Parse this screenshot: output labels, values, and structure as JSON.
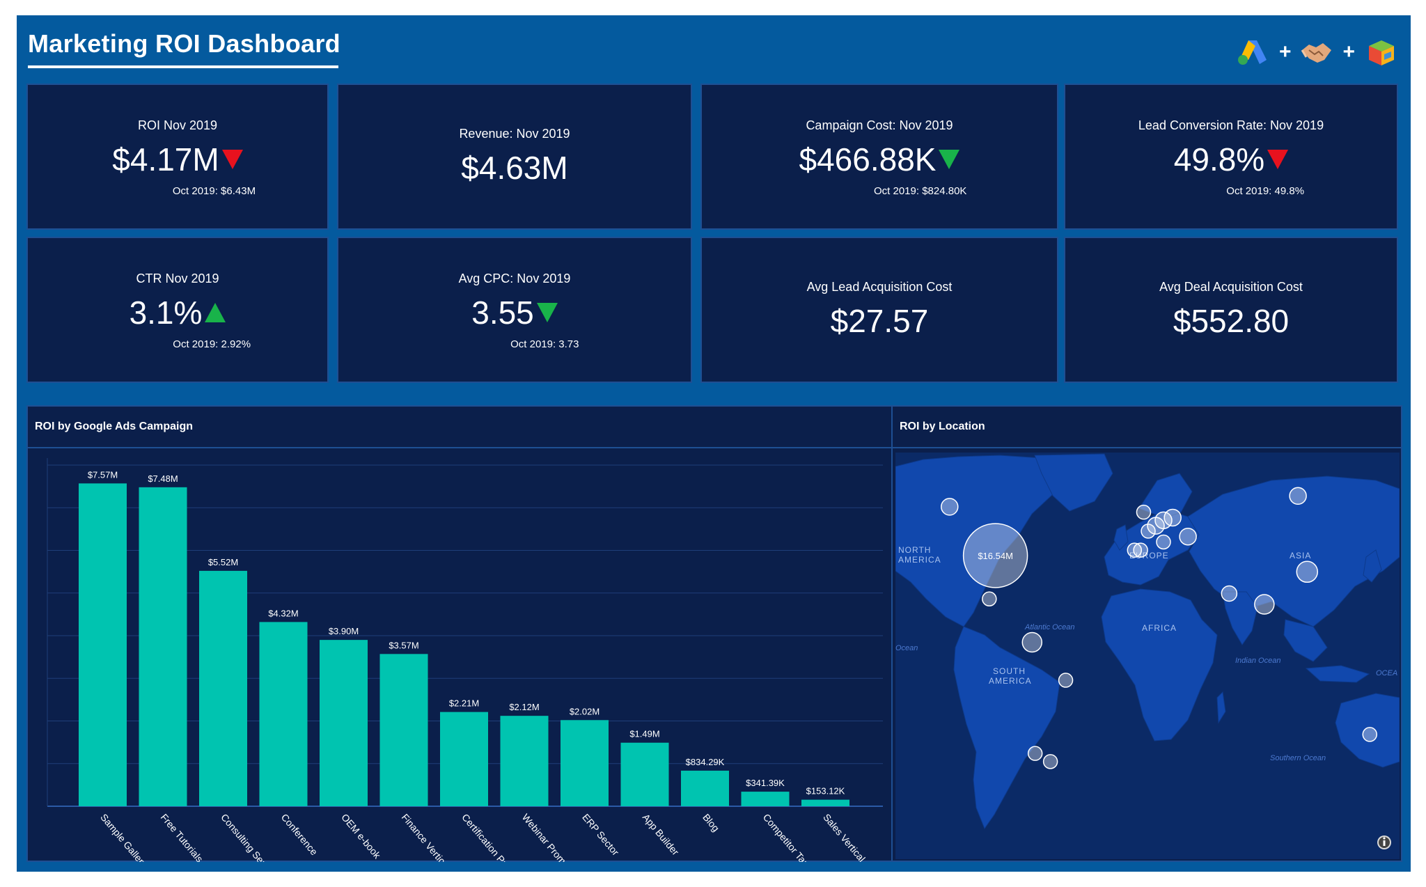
{
  "dashboard": {
    "title": "Marketing ROI Dashboard",
    "logos": [
      "google-ads-icon",
      "handshake-icon",
      "crm-cube-icon"
    ],
    "plus": "+"
  },
  "colors": {
    "frame": "#045a9e",
    "card": "#0b1f4b",
    "bar": "#00c4b0",
    "down_red": "#e8121e",
    "green": "#19b34a"
  },
  "kpis": [
    {
      "label": "ROI Nov 2019",
      "value": "$4.17M",
      "trend": "down-red",
      "sub": "Oct 2019: $6.43M"
    },
    {
      "label": "Revenue: Nov 2019",
      "value": "$4.63M",
      "trend": "none",
      "sub": ""
    },
    {
      "label": "Campaign Cost: Nov 2019",
      "value": "$466.88K",
      "trend": "down-green",
      "sub": "Oct 2019: $824.80K"
    },
    {
      "label": "Lead Conversion Rate: Nov 2019",
      "value": "49.8%",
      "trend": "down-red",
      "sub": "Oct 2019: 49.8%"
    },
    {
      "label": "CTR Nov 2019",
      "value": "3.1%",
      "trend": "up-green",
      "sub": "Oct 2019: 2.92%"
    },
    {
      "label": "Avg CPC: Nov 2019",
      "value": "3.55",
      "trend": "down-green",
      "sub": "Oct 2019: 3.73"
    },
    {
      "label": "Avg Lead Acquisition Cost",
      "value": "$27.57",
      "trend": "none",
      "sub": ""
    },
    {
      "label": "Avg Deal Acquisition Cost",
      "value": "$552.80",
      "trend": "none",
      "sub": ""
    }
  ],
  "bar_panel": {
    "title": "ROI by Google Ads Campaign"
  },
  "map_panel": {
    "title": "ROI by Location",
    "labels": {
      "north_america": [
        "NORTH",
        "AMERICA"
      ],
      "south_america": [
        "SOUTH",
        "AMERICA"
      ],
      "europe": "EUROPE",
      "asia": "ASIA",
      "africa": "AFRICA",
      "atlantic": "Atlantic Ocean",
      "indian": "Indian Ocean",
      "southern": "Southern Ocean",
      "ocean_left": "Ocean",
      "ocean_right": "OCEA"
    },
    "highlight_value": "$16.54M",
    "bubbles": [
      {
        "lon": -98,
        "lat": 38,
        "r": 46,
        "label": "$16.54M"
      },
      {
        "lon": -128,
        "lat": 56,
        "r": 12
      },
      {
        "lon": -102,
        "lat": 22,
        "r": 10
      },
      {
        "lon": -74,
        "lat": 6,
        "r": 14
      },
      {
        "lon": -52,
        "lat": -8,
        "r": 10
      },
      {
        "lon": -72,
        "lat": -35,
        "r": 10
      },
      {
        "lon": -62,
        "lat": -38,
        "r": 10
      },
      {
        "lon": -1,
        "lat": 54,
        "r": 10
      },
      {
        "lon": 2,
        "lat": 47,
        "r": 10
      },
      {
        "lon": 7,
        "lat": 49,
        "r": 12
      },
      {
        "lon": 12,
        "lat": 51,
        "r": 12
      },
      {
        "lon": 18,
        "lat": 52,
        "r": 12
      },
      {
        "lon": -7,
        "lat": 40,
        "r": 10
      },
      {
        "lon": -3,
        "lat": 40,
        "r": 10
      },
      {
        "lon": 12,
        "lat": 43,
        "r": 10
      },
      {
        "lon": 28,
        "lat": 45,
        "r": 12
      },
      {
        "lon": 100,
        "lat": 60,
        "r": 12
      },
      {
        "lon": 55,
        "lat": 24,
        "r": 11
      },
      {
        "lon": 78,
        "lat": 20,
        "r": 14
      },
      {
        "lon": 106,
        "lat": 32,
        "r": 15
      },
      {
        "lon": 147,
        "lat": -28,
        "r": 10
      }
    ]
  },
  "chart_data": {
    "type": "bar",
    "title": "ROI by Google Ads Campaign",
    "categories": [
      "Sample Gallery",
      "Free Tutorials",
      "Consulting Service",
      "Conference",
      "OEM e-book",
      "Finance Vertical",
      "Certification Program",
      "Webinar Promotion",
      "ERP Sector",
      "App Builder",
      "Blog",
      "Competitor Targets",
      "Sales Vertical"
    ],
    "values": [
      7570000,
      7480000,
      5520000,
      4320000,
      3900000,
      3570000,
      2210000,
      2120000,
      2020000,
      1490000,
      834290,
      341390,
      153120
    ],
    "data_labels": [
      "$7.57M",
      "$7.48M",
      "$5.52M",
      "$4.32M",
      "$3.90M",
      "$3.57M",
      "$2.21M",
      "$2.12M",
      "$2.02M",
      "$1.49M",
      "$834.29K",
      "$341.39K",
      "$153.12K"
    ],
    "ylim": [
      0,
      8000000
    ],
    "grid": true,
    "xlabel": "",
    "ylabel": ""
  }
}
